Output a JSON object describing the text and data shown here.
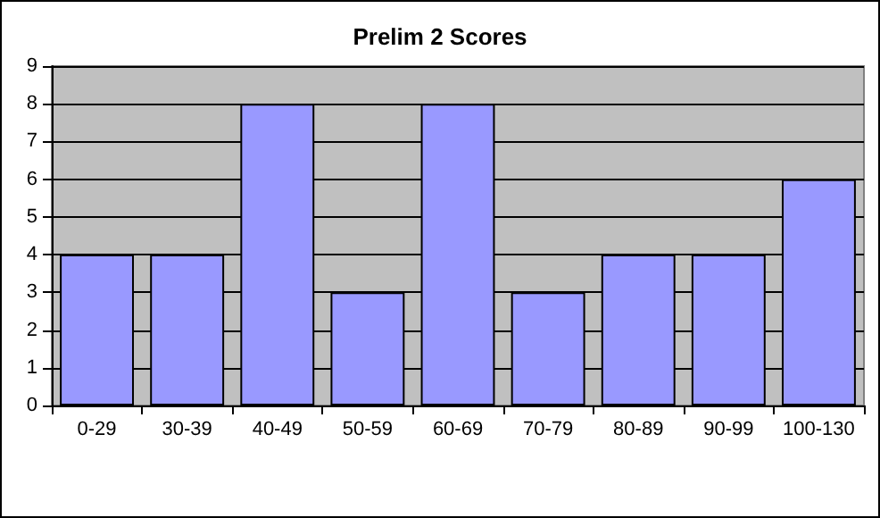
{
  "chart_data": {
    "type": "bar",
    "title": "Prelim 2 Scores",
    "categories": [
      "0-29",
      "30-39",
      "40-49",
      "50-59",
      "60-69",
      "70-79",
      "80-89",
      "90-99",
      "100-130"
    ],
    "values": [
      4,
      4,
      8,
      3,
      8,
      3,
      4,
      4,
      6
    ],
    "color": "#9999ff",
    "ylim": [
      0,
      9
    ],
    "yticks": [
      0,
      1,
      2,
      3,
      4,
      5,
      6,
      7,
      8,
      9
    ],
    "grid": "y"
  }
}
